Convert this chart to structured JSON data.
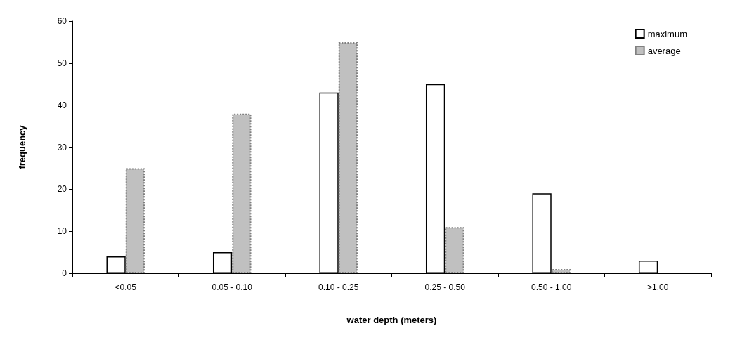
{
  "chart_data": {
    "type": "bar",
    "xlabel": "water depth (meters)",
    "ylabel": "frequency",
    "categories": [
      "<0.05",
      "0.05 - 0.10",
      "0.10 - 0.25",
      "0.25 - 0.50",
      "0.50 - 1.00",
      ">1.00"
    ],
    "series": [
      {
        "name": "maximum",
        "color": "#ffffff",
        "line_style": "solid",
        "values": [
          4,
          5,
          43,
          45,
          19,
          3
        ]
      },
      {
        "name": "average",
        "color": "#c0c0c0",
        "line_style": "dotted",
        "values": [
          25,
          38,
          55,
          11,
          1,
          null
        ]
      }
    ],
    "ylim": [
      0,
      60
    ],
    "yticks": [
      0,
      10,
      20,
      30,
      40,
      50,
      60
    ],
    "grid": false,
    "legend": "top right"
  }
}
